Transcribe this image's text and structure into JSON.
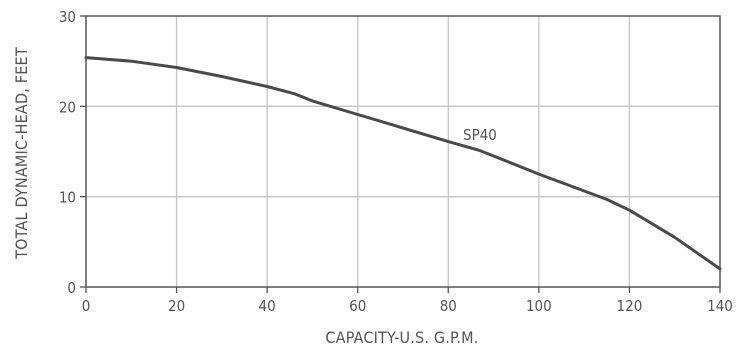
{
  "chart_data": {
    "type": "line",
    "xlabel": "CAPACITY-U.S. G.P.M.",
    "ylabel": "TOTAL DYNAMIC-HEAD, FEET",
    "xlim": [
      0,
      140
    ],
    "ylim": [
      0,
      30
    ],
    "xticks": [
      "0",
      "20",
      "40",
      "60",
      "80",
      "100",
      "120",
      "140"
    ],
    "yticks": [
      "0",
      "10",
      "20",
      "30"
    ],
    "grid": true,
    "series": [
      {
        "name": "SP40",
        "x": [
          0,
          10,
          20,
          30,
          40,
          46,
          50,
          60,
          70,
          80,
          87,
          100,
          115,
          120,
          130,
          140
        ],
        "y": [
          25.4,
          25.0,
          24.3,
          23.3,
          22.2,
          21.4,
          20.6,
          19.1,
          17.6,
          16.1,
          15.1,
          12.5,
          9.7,
          8.5,
          5.5,
          2.0
        ]
      }
    ],
    "colors": {
      "line": "#4a4a4a",
      "grid": "#c4c4c4",
      "frame": "#555555",
      "text": "#555555"
    }
  }
}
